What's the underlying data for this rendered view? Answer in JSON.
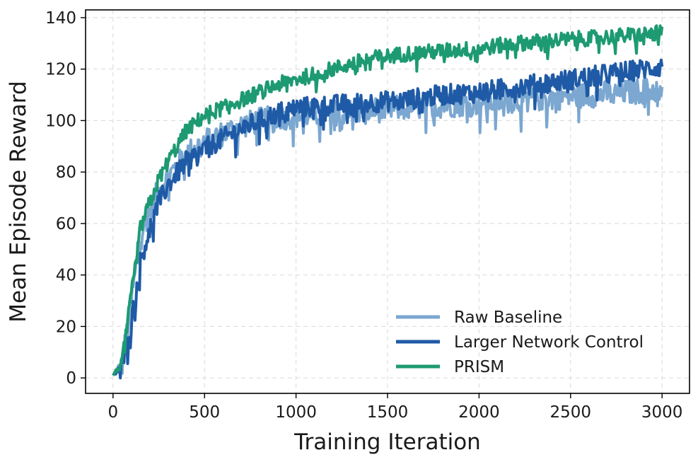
{
  "chart_data": {
    "type": "line",
    "title": "",
    "xlabel": "Training Iteration",
    "ylabel": "Mean Episode Reward",
    "xlim": [
      -150,
      3150
    ],
    "ylim": [
      -6,
      143
    ],
    "xticks": [
      0,
      500,
      1000,
      1500,
      2000,
      2500,
      3000
    ],
    "yticks": [
      0,
      20,
      40,
      60,
      80,
      100,
      120,
      140
    ],
    "grid": true,
    "legend_position": "lower-right",
    "series": [
      {
        "name": "Raw Baseline",
        "color": "#7ba7d0",
        "noise": 5.0,
        "x": [
          0,
          50,
          100,
          150,
          200,
          250,
          300,
          400,
          500,
          600,
          700,
          800,
          900,
          1000,
          1200,
          1400,
          1600,
          1800,
          2000,
          2200,
          2400,
          2600,
          2800,
          3000
        ],
        "values": [
          1,
          5,
          30,
          55,
          65,
          73,
          78,
          87,
          92,
          95,
          98,
          100,
          101,
          102,
          103,
          104,
          105,
          106,
          107,
          108,
          109,
          110,
          111,
          112
        ]
      },
      {
        "name": "Larger Network Control",
        "color": "#1f5aa6",
        "noise": 4.0,
        "x": [
          0,
          50,
          100,
          150,
          200,
          250,
          300,
          400,
          500,
          600,
          700,
          800,
          900,
          1000,
          1200,
          1400,
          1600,
          1800,
          2000,
          2200,
          2400,
          2600,
          2800,
          3000
        ],
        "values": [
          1,
          5,
          22,
          45,
          58,
          68,
          75,
          84,
          89,
          93,
          97,
          100,
          103,
          105,
          106,
          107,
          108,
          110,
          111,
          113,
          115,
          117,
          119,
          121
        ]
      },
      {
        "name": "PRISM",
        "color": "#1d9a72",
        "noise": 3.0,
        "x": [
          0,
          50,
          100,
          150,
          200,
          250,
          300,
          400,
          500,
          600,
          700,
          800,
          900,
          1000,
          1200,
          1400,
          1600,
          1800,
          2000,
          2200,
          2400,
          2600,
          2800,
          3000
        ],
        "values": [
          1,
          6,
          32,
          58,
          68,
          77,
          84,
          96,
          102,
          105,
          108,
          111,
          114,
          116,
          120,
          124,
          126,
          127,
          128,
          130,
          131,
          132,
          133,
          134
        ]
      }
    ]
  }
}
